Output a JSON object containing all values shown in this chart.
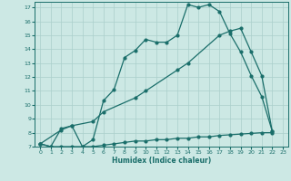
{
  "xlabel": "Humidex (Indice chaleur)",
  "bg_color": "#cce8e4",
  "grid_color": "#aacfcb",
  "line_color": "#1a6e6a",
  "xlim": [
    -0.5,
    23.5
  ],
  "ylim": [
    7,
    17.4
  ],
  "yticks": [
    7,
    8,
    9,
    10,
    11,
    12,
    13,
    14,
    15,
    16,
    17
  ],
  "xticks": [
    0,
    1,
    2,
    3,
    4,
    5,
    6,
    7,
    8,
    9,
    10,
    11,
    12,
    13,
    14,
    15,
    16,
    17,
    18,
    19,
    20,
    21,
    22,
    23
  ],
  "curve1_x": [
    0,
    1,
    2,
    3,
    4,
    5,
    6,
    7,
    8,
    9,
    10,
    11,
    12,
    13,
    14,
    15,
    16,
    17,
    18,
    19,
    20,
    21,
    22
  ],
  "curve1_y": [
    7.2,
    7.0,
    8.3,
    8.5,
    7.0,
    7.5,
    10.3,
    11.1,
    13.4,
    13.9,
    14.7,
    14.5,
    14.5,
    15.0,
    17.2,
    17.0,
    17.2,
    16.7,
    15.1,
    13.8,
    12.1,
    10.6,
    8.1
  ],
  "curve2_x": [
    0,
    2,
    3,
    5,
    6,
    9,
    10,
    13,
    14,
    17,
    18,
    19,
    20,
    21,
    22
  ],
  "curve2_y": [
    7.2,
    8.2,
    8.5,
    8.8,
    9.5,
    10.5,
    11.0,
    12.5,
    13.0,
    15.0,
    15.3,
    15.5,
    13.8,
    12.1,
    8.1
  ],
  "curve3_x": [
    0,
    1,
    2,
    3,
    4,
    5,
    6,
    7,
    8,
    9,
    10,
    11,
    12,
    13,
    14,
    15,
    16,
    17,
    18,
    19,
    20,
    21,
    22
  ],
  "curve3_y": [
    7.2,
    7.0,
    7.0,
    7.0,
    7.0,
    7.0,
    7.1,
    7.2,
    7.3,
    7.4,
    7.4,
    7.5,
    7.5,
    7.6,
    7.6,
    7.7,
    7.7,
    7.8,
    7.85,
    7.9,
    7.95,
    8.0,
    8.0
  ]
}
